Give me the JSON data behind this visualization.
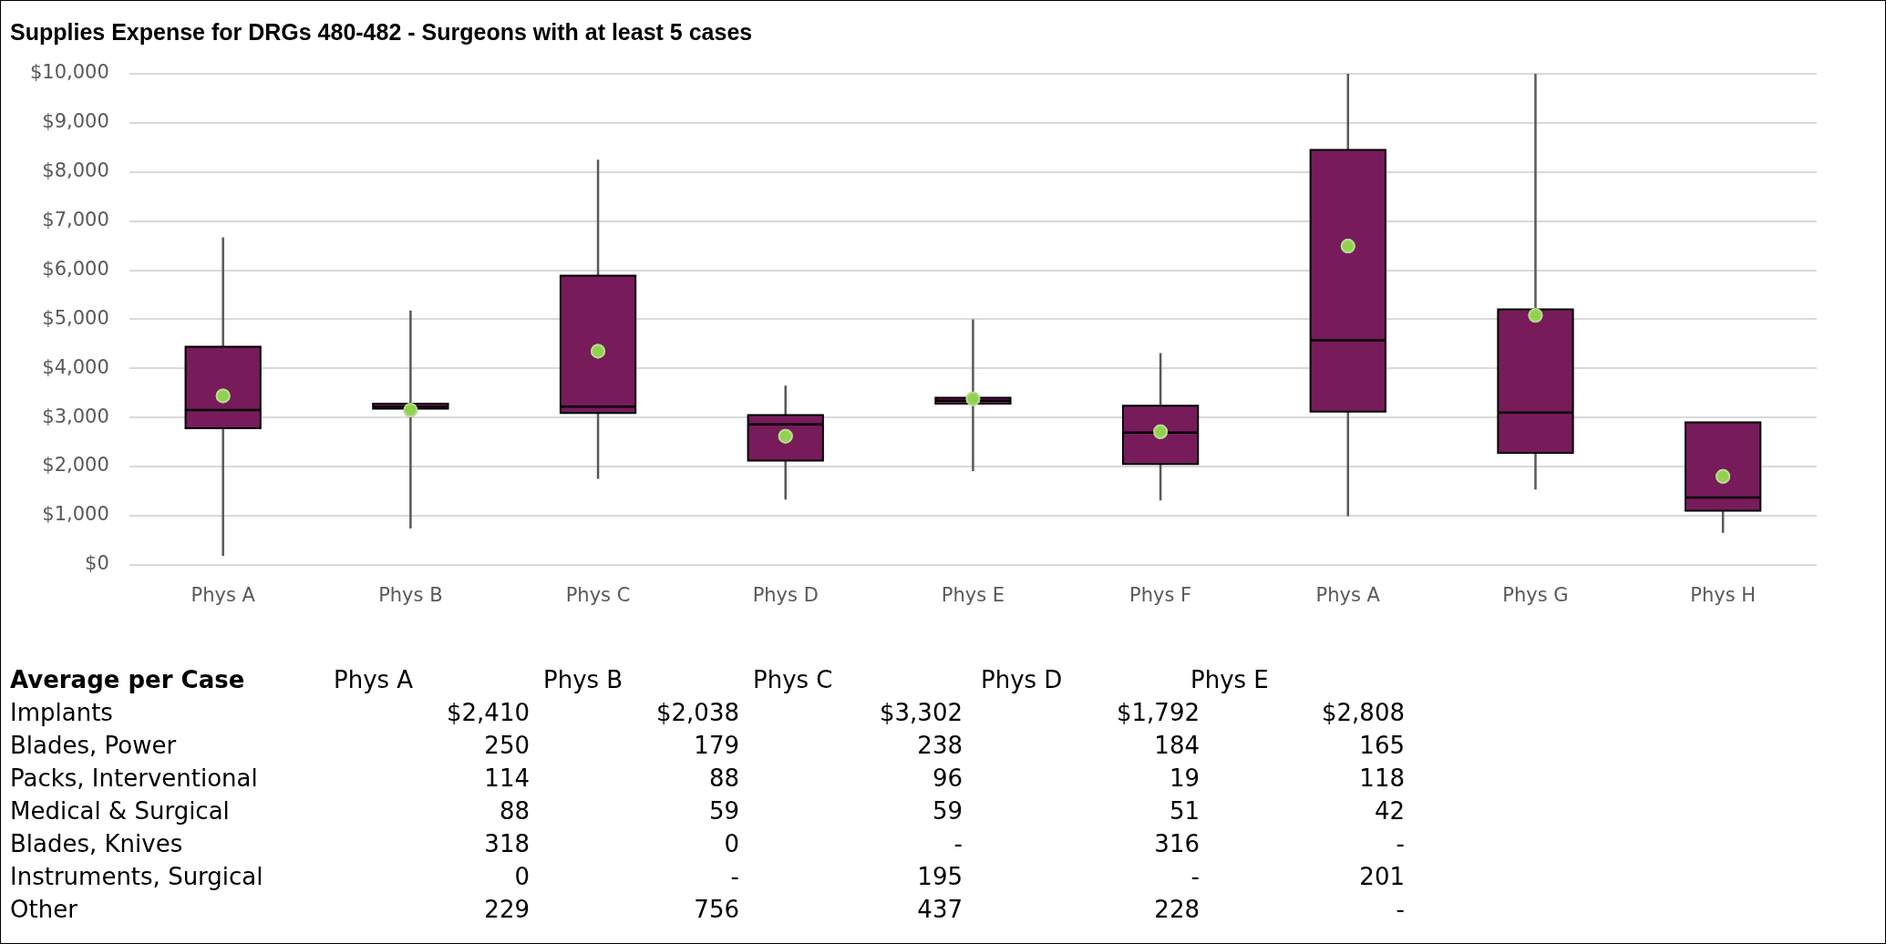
{
  "chart_data": [
    {
      "type": "box",
      "title": "Supplies Expense for DRGs 480-482 - Surgeons with at least 5 cases",
      "categories": [
        "Phys A",
        "Phys B",
        "Phys C",
        "Phys D",
        "Phys E",
        "Phys F",
        "Phys A",
        "Phys G",
        "Phys H"
      ],
      "color": "#771b5b",
      "ylim": [
        0,
        10000
      ],
      "yticks": [
        {
          "value": 0,
          "label": "$0"
        },
        {
          "value": 1000,
          "label": "$1,000"
        },
        {
          "value": 2000,
          "label": "$2,000"
        },
        {
          "value": 3000,
          "label": "$3,000"
        },
        {
          "value": 4000,
          "label": "$4,000"
        },
        {
          "value": 5000,
          "label": "$5,000"
        },
        {
          "value": 6000,
          "label": "$6,000"
        },
        {
          "value": 7000,
          "label": "$7,000"
        },
        {
          "value": 8000,
          "label": "$8,000"
        },
        {
          "value": 9000,
          "label": "$9,000"
        },
        {
          "value": 10000,
          "label": "$10,000"
        }
      ],
      "grid": "y",
      "legend": false,
      "marker": "circle",
      "boxes": [
        {
          "low": 180,
          "q1": 2780,
          "median": 3150,
          "q3": 4440,
          "high": 6670,
          "mean": 3440
        },
        {
          "low": 740,
          "q1": 3180,
          "median": 3220,
          "q3": 3280,
          "high": 5180,
          "mean": 3150
        },
        {
          "low": 1750,
          "q1": 3090,
          "median": 3220,
          "q3": 5890,
          "high": 8250,
          "mean": 4350
        },
        {
          "low": 1330,
          "q1": 2120,
          "median": 2860,
          "q3": 3050,
          "high": 3650,
          "mean": 2620
        },
        {
          "low": 1910,
          "q1": 3280,
          "median": 3340,
          "q3": 3400,
          "high": 5000,
          "mean": 3380
        },
        {
          "low": 1310,
          "q1": 2050,
          "median": 2690,
          "q3": 3240,
          "high": 4310,
          "mean": 2710
        },
        {
          "low": 990,
          "q1": 3120,
          "median": 4570,
          "q3": 8450,
          "high": 10000,
          "mean": 6490
        },
        {
          "low": 1530,
          "q1": 2280,
          "median": 3100,
          "q3": 5200,
          "high": 10000,
          "mean": 5080
        },
        {
          "low": 650,
          "q1": 1100,
          "median": 1370,
          "q3": 2900,
          "high": 2900,
          "mean": 1800
        }
      ]
    },
    {
      "type": "other",
      "title": "Average per Case",
      "categories": [
        "Phys A",
        "Phys B",
        "Phys C",
        "Phys D",
        "Phys E"
      ],
      "y_categories": [
        "Implants",
        "Blades, Power",
        "Packs, Interventional",
        "Medical & Surgical",
        "Blades, Knives",
        "Instruments, Surgical",
        "Other"
      ],
      "cell_labels": [
        [
          "$2,410",
          "$2,038",
          "$3,302",
          "$1,792",
          "$2,808"
        ],
        [
          "250",
          "179",
          "238",
          "184",
          "165"
        ],
        [
          "114",
          "88",
          "96",
          "19",
          "118"
        ],
        [
          "88",
          "59",
          "59",
          "51",
          "42"
        ],
        [
          "318",
          "0",
          "-",
          "316",
          "-"
        ],
        [
          "0",
          "-",
          "195",
          "-",
          "201"
        ],
        [
          "229",
          "756",
          "437",
          "228",
          "-"
        ]
      ]
    }
  ]
}
